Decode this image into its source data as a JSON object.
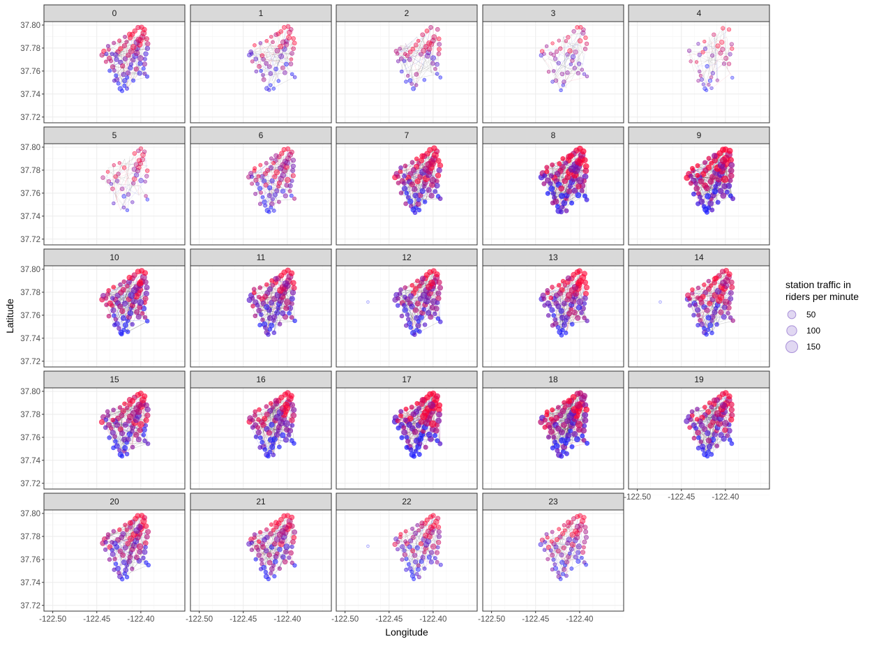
{
  "chart_data": {
    "type": "scatter",
    "facet_labels": [
      "0",
      "1",
      "2",
      "3",
      "4",
      "5",
      "6",
      "7",
      "8",
      "9",
      "10",
      "11",
      "12",
      "13",
      "14",
      "15",
      "16",
      "17",
      "18",
      "19",
      "20",
      "21",
      "22",
      "23"
    ],
    "xlabel": "Longitude",
    "ylabel": "Latitude",
    "xlim": [
      -122.51,
      -122.35
    ],
    "ylim": [
      37.715,
      37.803
    ],
    "x_ticks": [
      -122.5,
      -122.45,
      -122.4
    ],
    "x_tick_labels": [
      "-122.50",
      "-122.45",
      "-122.40"
    ],
    "y_ticks": [
      37.72,
      37.74,
      37.76,
      37.78,
      37.8
    ],
    "y_tick_labels": [
      "37.72",
      "37.74",
      "37.76",
      "37.78",
      "37.80"
    ],
    "grid": true,
    "legend": {
      "title_lines": [
        "station traffic in",
        "riders per minute"
      ],
      "placement": "right",
      "entries": [
        {
          "label": "50",
          "value": 50
        },
        {
          "label": "100",
          "value": 100
        },
        {
          "label": "150",
          "value": 150
        }
      ]
    },
    "colors": {
      "station_start": "#1a1aff",
      "station_end": "#ff0033",
      "mixed": "#8c1ab3",
      "route": "#333333",
      "strip_fill": "#d9d9d9",
      "legend_fill": "#c9b8e8",
      "legend_stroke": "#a88fd8"
    },
    "stations": [
      {
        "x": -122.4435,
        "y": 37.7735,
        "size": 3
      },
      {
        "x": -122.4418,
        "y": 37.7772,
        "size": 3
      },
      {
        "x": -122.4398,
        "y": 37.7748,
        "size": 2
      },
      {
        "x": -122.4372,
        "y": 37.7791,
        "size": 2
      },
      {
        "x": -122.4356,
        "y": 37.7707,
        "size": 3
      },
      {
        "x": -122.4332,
        "y": 37.7682,
        "size": 2
      },
      {
        "x": -122.4318,
        "y": 37.7641,
        "size": 3
      },
      {
        "x": -122.4298,
        "y": 37.7601,
        "size": 2
      },
      {
        "x": -122.4283,
        "y": 37.7562,
        "size": 2
      },
      {
        "x": -122.4265,
        "y": 37.7523,
        "size": 3
      },
      {
        "x": -122.4248,
        "y": 37.7488,
        "size": 2
      },
      {
        "x": -122.4231,
        "y": 37.7451,
        "size": 3
      },
      {
        "x": -122.4212,
        "y": 37.7432,
        "size": 2
      },
      {
        "x": -122.419,
        "y": 37.7475,
        "size": 2
      },
      {
        "x": -122.4175,
        "y": 37.7512,
        "size": 3
      },
      {
        "x": -122.4158,
        "y": 37.7548,
        "size": 2
      },
      {
        "x": -122.4141,
        "y": 37.7583,
        "size": 3
      },
      {
        "x": -122.4123,
        "y": 37.7621,
        "size": 3
      },
      {
        "x": -122.4106,
        "y": 37.7657,
        "size": 2
      },
      {
        "x": -122.4088,
        "y": 37.7692,
        "size": 3
      },
      {
        "x": -122.4071,
        "y": 37.7727,
        "size": 4
      },
      {
        "x": -122.4053,
        "y": 37.7761,
        "size": 4
      },
      {
        "x": -122.4036,
        "y": 37.7795,
        "size": 4
      },
      {
        "x": -122.4018,
        "y": 37.7829,
        "size": 4
      },
      {
        "x": -122.4001,
        "y": 37.7863,
        "size": 4
      },
      {
        "x": -122.3985,
        "y": 37.7897,
        "size": 4
      },
      {
        "x": -122.3968,
        "y": 37.7931,
        "size": 4
      },
      {
        "x": -122.3952,
        "y": 37.7962,
        "size": 3
      },
      {
        "x": -122.3995,
        "y": 37.7985,
        "size": 3
      },
      {
        "x": -122.4031,
        "y": 37.7974,
        "size": 3
      },
      {
        "x": -122.4065,
        "y": 37.7948,
        "size": 3
      },
      {
        "x": -122.4096,
        "y": 37.7918,
        "size": 3
      },
      {
        "x": -122.4128,
        "y": 37.7889,
        "size": 3
      },
      {
        "x": -122.4161,
        "y": 37.7858,
        "size": 2
      },
      {
        "x": -122.4193,
        "y": 37.7826,
        "size": 3
      },
      {
        "x": -122.4224,
        "y": 37.7795,
        "size": 3
      },
      {
        "x": -122.4257,
        "y": 37.7766,
        "size": 3
      },
      {
        "x": -122.4289,
        "y": 37.7738,
        "size": 3
      },
      {
        "x": -122.4321,
        "y": 37.7753,
        "size": 2
      },
      {
        "x": -122.4268,
        "y": 37.7704,
        "size": 3
      },
      {
        "x": -122.4236,
        "y": 37.7672,
        "size": 3
      },
      {
        "x": -122.4205,
        "y": 37.7641,
        "size": 3
      },
      {
        "x": -122.4173,
        "y": 37.7705,
        "size": 3
      },
      {
        "x": -122.4142,
        "y": 37.7741,
        "size": 3
      },
      {
        "x": -122.4112,
        "y": 37.7778,
        "size": 4
      },
      {
        "x": -122.4081,
        "y": 37.7812,
        "size": 4
      },
      {
        "x": -122.4049,
        "y": 37.7846,
        "size": 4
      },
      {
        "x": -122.4017,
        "y": 37.7879,
        "size": 4
      },
      {
        "x": -122.3938,
        "y": 37.7884,
        "size": 3
      },
      {
        "x": -122.3925,
        "y": 37.7838,
        "size": 3
      },
      {
        "x": -122.3932,
        "y": 37.7793,
        "size": 3
      },
      {
        "x": -122.3941,
        "y": 37.7748,
        "size": 3
      },
      {
        "x": -122.3951,
        "y": 37.7704,
        "size": 2
      },
      {
        "x": -122.3962,
        "y": 37.7661,
        "size": 3
      },
      {
        "x": -122.3975,
        "y": 37.7616,
        "size": 2
      },
      {
        "x": -122.3948,
        "y": 37.7575,
        "size": 2
      },
      {
        "x": -122.3921,
        "y": 37.7548,
        "size": 2
      },
      {
        "x": -122.4021,
        "y": 37.7582,
        "size": 3
      },
      {
        "x": -122.4051,
        "y": 37.7622,
        "size": 3
      },
      {
        "x": -122.4012,
        "y": 37.7665,
        "size": 3
      },
      {
        "x": -122.4001,
        "y": 37.7715,
        "size": 4
      },
      {
        "x": -122.4125,
        "y": 37.7921,
        "size": 3
      },
      {
        "x": -122.4183,
        "y": 37.7897,
        "size": 2
      },
      {
        "x": -122.4236,
        "y": 37.7862,
        "size": 2
      },
      {
        "x": -122.4312,
        "y": 37.7841,
        "size": 2
      },
      {
        "x": -122.4373,
        "y": 37.7821,
        "size": 2
      },
      {
        "x": -122.4398,
        "y": 37.7685,
        "size": 2
      },
      {
        "x": -122.4358,
        "y": 37.7598,
        "size": 2
      },
      {
        "x": -122.4305,
        "y": 37.7512,
        "size": 2
      },
      {
        "x": -122.4195,
        "y": 37.7575,
        "size": 3
      },
      {
        "x": -122.4153,
        "y": 37.7452,
        "size": 2
      },
      {
        "x": -122.4092,
        "y": 37.7519,
        "size": 2
      }
    ],
    "hour_activity": [
      0.55,
      0.35,
      0.35,
      0.25,
      0.2,
      0.25,
      0.5,
      0.85,
      1.0,
      1.0,
      0.8,
      0.8,
      0.8,
      0.8,
      0.75,
      0.8,
      0.85,
      1.0,
      1.0,
      0.85,
      0.7,
      0.65,
      0.5,
      0.45
    ],
    "outliers": [
      {
        "facet": "12",
        "x": -122.474,
        "y": 37.7715
      },
      {
        "facet": "14",
        "x": -122.474,
        "y": 37.7715
      },
      {
        "facet": "22",
        "x": -122.474,
        "y": 37.7715
      }
    ]
  }
}
